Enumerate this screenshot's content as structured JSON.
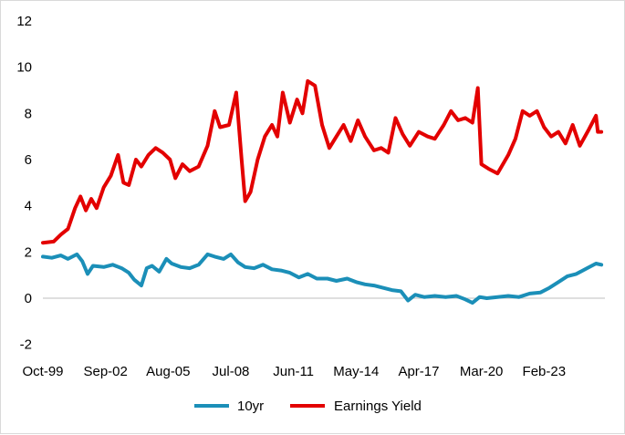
{
  "chart_data": {
    "type": "line",
    "title": "",
    "xlabel": "",
    "ylabel": "",
    "ylim": [
      -2,
      12
    ],
    "yticks": [
      -2,
      0,
      2,
      4,
      6,
      8,
      10,
      12
    ],
    "grid": false,
    "legend_position": "bottom",
    "x_tick_labels": [
      "Oct-99",
      "Sep-02",
      "Aug-05",
      "Jul-08",
      "Jun-11",
      "May-14",
      "Apr-17",
      "Mar-20",
      "Feb-23"
    ],
    "x_tick_dates": [
      "1999-10",
      "2002-09",
      "2005-08",
      "2008-07",
      "2011-06",
      "2014-05",
      "2017-04",
      "2020-03",
      "2023-02"
    ],
    "x_range": [
      "1999-10",
      "2025-12"
    ],
    "series": [
      {
        "name": "10yr",
        "color": "#1b8fb8",
        "points": [
          [
            "1999-10",
            1.8
          ],
          [
            "2000-03",
            1.75
          ],
          [
            "2000-08",
            1.85
          ],
          [
            "2000-12",
            1.7
          ],
          [
            "2001-05",
            1.9
          ],
          [
            "2001-08",
            1.6
          ],
          [
            "2001-11",
            1.05
          ],
          [
            "2002-02",
            1.4
          ],
          [
            "2002-08",
            1.35
          ],
          [
            "2003-01",
            1.45
          ],
          [
            "2003-06",
            1.3
          ],
          [
            "2003-10",
            1.1
          ],
          [
            "2004-01",
            0.8
          ],
          [
            "2004-05",
            0.55
          ],
          [
            "2004-08",
            1.3
          ],
          [
            "2004-11",
            1.4
          ],
          [
            "2005-03",
            1.15
          ],
          [
            "2005-07",
            1.7
          ],
          [
            "2005-10",
            1.5
          ],
          [
            "2006-03",
            1.35
          ],
          [
            "2006-08",
            1.3
          ],
          [
            "2007-01",
            1.45
          ],
          [
            "2007-06",
            1.9
          ],
          [
            "2007-10",
            1.8
          ],
          [
            "2008-03",
            1.7
          ],
          [
            "2008-07",
            1.9
          ],
          [
            "2008-11",
            1.55
          ],
          [
            "2009-03",
            1.35
          ],
          [
            "2009-08",
            1.3
          ],
          [
            "2010-01",
            1.45
          ],
          [
            "2010-06",
            1.25
          ],
          [
            "2010-11",
            1.2
          ],
          [
            "2011-04",
            1.1
          ],
          [
            "2011-09",
            0.9
          ],
          [
            "2012-02",
            1.05
          ],
          [
            "2012-07",
            0.85
          ],
          [
            "2013-01",
            0.85
          ],
          [
            "2013-06",
            0.75
          ],
          [
            "2013-12",
            0.85
          ],
          [
            "2014-05",
            0.7
          ],
          [
            "2014-10",
            0.6
          ],
          [
            "2015-03",
            0.55
          ],
          [
            "2015-08",
            0.45
          ],
          [
            "2016-01",
            0.35
          ],
          [
            "2016-06",
            0.3
          ],
          [
            "2016-10",
            -0.1
          ],
          [
            "2017-02",
            0.15
          ],
          [
            "2017-07",
            0.05
          ],
          [
            "2018-01",
            0.1
          ],
          [
            "2018-07",
            0.05
          ],
          [
            "2019-01",
            0.1
          ],
          [
            "2019-06",
            -0.05
          ],
          [
            "2019-10",
            -0.2
          ],
          [
            "2020-02",
            0.05
          ],
          [
            "2020-06",
            0.0
          ],
          [
            "2020-12",
            0.05
          ],
          [
            "2021-06",
            0.1
          ],
          [
            "2021-12",
            0.05
          ],
          [
            "2022-06",
            0.2
          ],
          [
            "2022-12",
            0.25
          ],
          [
            "2023-05",
            0.45
          ],
          [
            "2023-10",
            0.7
          ],
          [
            "2024-03",
            0.95
          ],
          [
            "2024-08",
            1.05
          ],
          [
            "2025-02",
            1.3
          ],
          [
            "2025-07",
            1.5
          ],
          [
            "2025-10",
            1.45
          ]
        ]
      },
      {
        "name": "Earnings Yield",
        "color": "#e30000",
        "points": [
          [
            "1999-10",
            2.4
          ],
          [
            "2000-04",
            2.45
          ],
          [
            "2000-08",
            2.75
          ],
          [
            "2000-12",
            3.0
          ],
          [
            "2001-04",
            3.9
          ],
          [
            "2001-07",
            4.4
          ],
          [
            "2001-10",
            3.8
          ],
          [
            "2002-01",
            4.3
          ],
          [
            "2002-04",
            3.9
          ],
          [
            "2002-08",
            4.8
          ],
          [
            "2002-12",
            5.3
          ],
          [
            "2003-04",
            6.2
          ],
          [
            "2003-07",
            5.0
          ],
          [
            "2003-10",
            4.9
          ],
          [
            "2004-02",
            6.0
          ],
          [
            "2004-05",
            5.7
          ],
          [
            "2004-09",
            6.2
          ],
          [
            "2005-01",
            6.5
          ],
          [
            "2005-05",
            6.3
          ],
          [
            "2005-09",
            6.0
          ],
          [
            "2005-12",
            5.2
          ],
          [
            "2006-04",
            5.8
          ],
          [
            "2006-08",
            5.5
          ],
          [
            "2007-01",
            5.7
          ],
          [
            "2007-06",
            6.6
          ],
          [
            "2007-10",
            8.1
          ],
          [
            "2008-01",
            7.4
          ],
          [
            "2008-06",
            7.5
          ],
          [
            "2008-10",
            8.9
          ],
          [
            "2009-01",
            6.0
          ],
          [
            "2009-03",
            4.2
          ],
          [
            "2009-06",
            4.6
          ],
          [
            "2009-10",
            6.0
          ],
          [
            "2010-02",
            7.0
          ],
          [
            "2010-06",
            7.5
          ],
          [
            "2010-09",
            7.0
          ],
          [
            "2010-12",
            8.9
          ],
          [
            "2011-04",
            7.6
          ],
          [
            "2011-08",
            8.6
          ],
          [
            "2011-11",
            8.0
          ],
          [
            "2012-02",
            9.4
          ],
          [
            "2012-06",
            9.2
          ],
          [
            "2012-10",
            7.5
          ],
          [
            "2013-02",
            6.5
          ],
          [
            "2013-06",
            7.0
          ],
          [
            "2013-10",
            7.5
          ],
          [
            "2014-02",
            6.8
          ],
          [
            "2014-06",
            7.7
          ],
          [
            "2014-10",
            7.0
          ],
          [
            "2015-03",
            6.4
          ],
          [
            "2015-07",
            6.5
          ],
          [
            "2015-11",
            6.3
          ],
          [
            "2016-03",
            7.8
          ],
          [
            "2016-07",
            7.1
          ],
          [
            "2016-11",
            6.6
          ],
          [
            "2017-04",
            7.2
          ],
          [
            "2017-09",
            7.0
          ],
          [
            "2018-01",
            6.9
          ],
          [
            "2018-06",
            7.5
          ],
          [
            "2018-10",
            8.1
          ],
          [
            "2019-02",
            7.7
          ],
          [
            "2019-06",
            7.8
          ],
          [
            "2019-10",
            7.6
          ],
          [
            "2020-01",
            9.1
          ],
          [
            "2020-03",
            5.8
          ],
          [
            "2020-07",
            5.6
          ],
          [
            "2020-12",
            5.4
          ],
          [
            "2021-06",
            6.2
          ],
          [
            "2021-10",
            6.9
          ],
          [
            "2022-02",
            8.1
          ],
          [
            "2022-06",
            7.9
          ],
          [
            "2022-10",
            8.1
          ],
          [
            "2023-02",
            7.4
          ],
          [
            "2023-06",
            7.0
          ],
          [
            "2023-10",
            7.2
          ],
          [
            "2024-02",
            6.7
          ],
          [
            "2024-06",
            7.5
          ],
          [
            "2024-10",
            6.6
          ],
          [
            "2025-03",
            7.3
          ],
          [
            "2025-07",
            7.9
          ],
          [
            "2025-08",
            7.2
          ],
          [
            "2025-10",
            7.2
          ]
        ]
      }
    ]
  }
}
